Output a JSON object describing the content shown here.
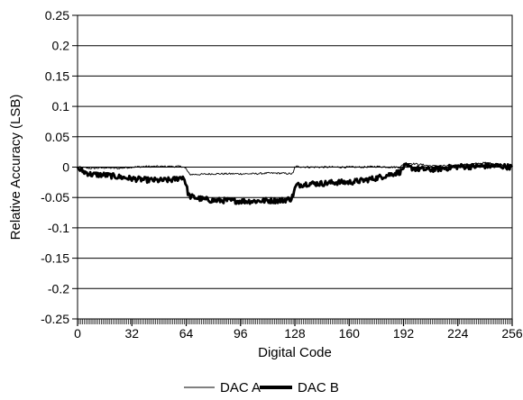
{
  "chart_data": {
    "type": "line",
    "title": "",
    "xlabel": "Digital Code",
    "ylabel": "Relative Accuracy (LSB)",
    "xlim": [
      0,
      256
    ],
    "ylim": [
      -0.25,
      0.25
    ],
    "x_ticks": [
      {
        "value": 0,
        "label": "0"
      },
      {
        "value": 32,
        "label": "32"
      },
      {
        "value": 64,
        "label": "64"
      },
      {
        "value": 96,
        "label": "96"
      },
      {
        "value": 128,
        "label": "128"
      },
      {
        "value": 160,
        "label": "160"
      },
      {
        "value": 192,
        "label": "192"
      },
      {
        "value": 224,
        "label": "224"
      },
      {
        "value": 256,
        "label": "256"
      }
    ],
    "y_ticks": [
      {
        "value": 0.25,
        "label": "0.25"
      },
      {
        "value": 0.2,
        "label": "0.2"
      },
      {
        "value": 0.15,
        "label": "0.15"
      },
      {
        "value": 0.1,
        "label": "0.1"
      },
      {
        "value": 0.05,
        "label": "0.05"
      },
      {
        "value": 0,
        "label": "0"
      },
      {
        "value": -0.05,
        "label": "-0.05"
      },
      {
        "value": -0.1,
        "label": "-0.1"
      },
      {
        "value": -0.15,
        "label": "-0.15"
      },
      {
        "value": -0.2,
        "label": "-0.2"
      },
      {
        "value": -0.25,
        "label": "-0.25"
      }
    ],
    "grid": "horizontal",
    "minor_x_ticks_every": 1,
    "legend_position": "bottom-center",
    "series": [
      {
        "name": "DAC A",
        "line_weight": "thin",
        "color": "#000000",
        "points": [
          [
            0,
            0.0
          ],
          [
            8,
            -0.002
          ],
          [
            16,
            -0.001
          ],
          [
            24,
            -0.002
          ],
          [
            32,
            0.0
          ],
          [
            40,
            0.001
          ],
          [
            48,
            0.001
          ],
          [
            56,
            0.001
          ],
          [
            62,
            0.001
          ],
          [
            64,
            -0.003
          ],
          [
            65,
            -0.008
          ],
          [
            66,
            -0.012
          ],
          [
            72,
            -0.012
          ],
          [
            80,
            -0.011
          ],
          [
            88,
            -0.011
          ],
          [
            96,
            -0.011
          ],
          [
            104,
            -0.011
          ],
          [
            112,
            -0.01
          ],
          [
            120,
            -0.01
          ],
          [
            126,
            -0.011
          ],
          [
            127,
            -0.01
          ],
          [
            128,
            0.0
          ],
          [
            129,
            0.001
          ],
          [
            136,
            0.0
          ],
          [
            144,
            0.0
          ],
          [
            152,
            0.0
          ],
          [
            160,
            0.0
          ],
          [
            168,
            0.0
          ],
          [
            176,
            0.001
          ],
          [
            184,
            0.0
          ],
          [
            190,
            0.0
          ],
          [
            191,
            0.002
          ],
          [
            192,
            0.005
          ],
          [
            193,
            0.007
          ],
          [
            200,
            0.005
          ],
          [
            208,
            0.002
          ],
          [
            216,
            0.002
          ],
          [
            224,
            0.003
          ],
          [
            232,
            0.005
          ],
          [
            240,
            0.007
          ],
          [
            248,
            0.005
          ],
          [
            256,
            0.001
          ]
        ]
      },
      {
        "name": "DAC B",
        "line_weight": "thick",
        "color": "#000000",
        "points": [
          [
            0,
            -0.002
          ],
          [
            4,
            -0.008
          ],
          [
            8,
            -0.012
          ],
          [
            16,
            -0.013
          ],
          [
            24,
            -0.016
          ],
          [
            32,
            -0.019
          ],
          [
            40,
            -0.021
          ],
          [
            48,
            -0.022
          ],
          [
            56,
            -0.021
          ],
          [
            62,
            -0.016
          ],
          [
            63,
            -0.02
          ],
          [
            64,
            -0.03
          ],
          [
            65,
            -0.042
          ],
          [
            66,
            -0.048
          ],
          [
            72,
            -0.052
          ],
          [
            80,
            -0.055
          ],
          [
            88,
            -0.055
          ],
          [
            96,
            -0.056
          ],
          [
            104,
            -0.056
          ],
          [
            112,
            -0.055
          ],
          [
            120,
            -0.055
          ],
          [
            126,
            -0.052
          ],
          [
            127,
            -0.045
          ],
          [
            128,
            -0.036
          ],
          [
            129,
            -0.03
          ],
          [
            136,
            -0.027
          ],
          [
            144,
            -0.027
          ],
          [
            152,
            -0.025
          ],
          [
            160,
            -0.025
          ],
          [
            168,
            -0.022
          ],
          [
            176,
            -0.018
          ],
          [
            184,
            -0.012
          ],
          [
            190,
            -0.008
          ],
          [
            191,
            -0.005
          ],
          [
            192,
            0.0
          ],
          [
            193,
            0.001
          ],
          [
            200,
            -0.003
          ],
          [
            208,
            -0.004
          ],
          [
            216,
            -0.002
          ],
          [
            224,
            0.001
          ],
          [
            232,
            0.001
          ],
          [
            240,
            0.002
          ],
          [
            248,
            0.002
          ],
          [
            256,
            0.0
          ]
        ]
      }
    ],
    "legend": [
      {
        "label": "DAC A",
        "line_weight": "thin"
      },
      {
        "label": "DAC B",
        "line_weight": "thick"
      }
    ]
  }
}
